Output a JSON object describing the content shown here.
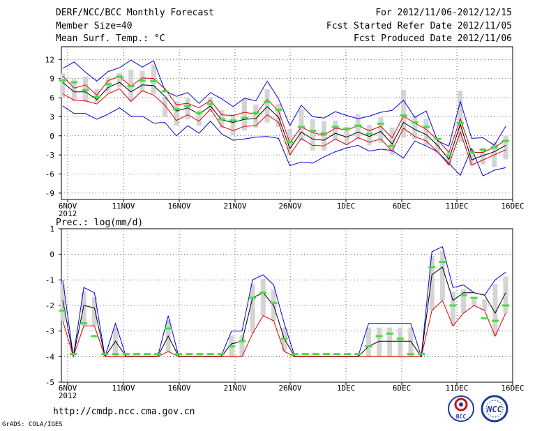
{
  "header": {
    "title": "DERF/NCC/BCC Monthly Forecast",
    "member_size": "Member Size=40",
    "variable": "Mean Surf. Temp.: °C",
    "period": "For 2012/11/06-2012/12/15",
    "start_date": "Fcst Started Refer Date 2012/11/05",
    "produced_date": "Fcst Produced Date 2012/11/06"
  },
  "footer": {
    "url": "http://cmdp.ncc.cma.gov.cn",
    "grads_credit": "GrADS: COLA/IGES",
    "logo_bcc_text": "BCC",
    "logo_ncc_text": "NCC"
  },
  "chart_data": [
    {
      "type": "line",
      "title": "Mean Surf. Temp.: °C",
      "x_tick_labels": [
        "6NOV",
        "11NOV",
        "16NOV",
        "21NOV",
        "26NOV",
        "1DEC",
        "6DEC",
        "11DEC",
        "16DEC"
      ],
      "x_year_label": "2012",
      "ylim": [
        -10,
        14
      ],
      "y_ticks": [
        -9,
        -6,
        -3,
        0,
        3,
        6,
        9,
        12
      ],
      "y_tick_labels": [
        "-9",
        "-6",
        "-3",
        "0",
        "3",
        "6",
        "9",
        "12"
      ],
      "grid": true,
      "series": [
        {
          "name": "max",
          "color": "#0000e0",
          "values": [
            4.7,
            3.5,
            3.5,
            2.6,
            3.4,
            4.4,
            3.1,
            3.1,
            2.0,
            2.1,
            0.0,
            1.6,
            0.4,
            2.3,
            0.3,
            -0.7,
            -0.5,
            -0.2,
            -0.1,
            -0.4,
            -4.7,
            -4.1,
            -4.3,
            -3.3,
            -2.5,
            -1.9,
            -1.5,
            -2.4,
            -2.1,
            -2.3,
            -3.5,
            -0.8,
            -1.6,
            -2.5,
            -4.3,
            -6.2,
            -2.0,
            -6.3,
            -5.4,
            -5.0
          ]
        },
        {
          "name": "mean",
          "color": "#000000",
          "values": [
            8.4,
            6.9,
            6.9,
            5.7,
            7.6,
            8.4,
            6.9,
            8.0,
            7.9,
            6.2,
            3.9,
            4.4,
            3.4,
            4.7,
            2.5,
            2.1,
            2.6,
            2.7,
            4.6,
            2.9,
            -2.0,
            0.6,
            -0.5,
            -0.7,
            0.4,
            -0.2,
            0.6,
            -0.1,
            0.7,
            -1.3,
            2.1,
            1.0,
            0.2,
            -1.5,
            -3.7,
            1.8,
            -3.8,
            -3.1,
            -2.5,
            -1.5
          ]
        },
        {
          "name": "min",
          "color": "#0000e0",
          "values": [
            10.6,
            11.6,
            10.0,
            8.6,
            10.1,
            10.7,
            11.9,
            10.8,
            11.8,
            7.1,
            6.2,
            6.8,
            5.1,
            6.8,
            5.8,
            4.6,
            5.9,
            5.5,
            8.6,
            5.8,
            1.6,
            4.8,
            3.0,
            2.8,
            3.8,
            3.2,
            2.7,
            3.1,
            3.7,
            4.0,
            5.6,
            2.9,
            3.9,
            -0.8,
            -1.6,
            5.4,
            -0.4,
            -0.3,
            -1.5,
            1.5
          ]
        },
        {
          "name": "lower_pct",
          "color": "#dd0000",
          "values": [
            6.6,
            5.6,
            5.5,
            5.0,
            6.6,
            7.4,
            5.4,
            7.1,
            6.4,
            4.8,
            2.4,
            3.3,
            2.3,
            4.2,
            1.5,
            0.8,
            1.5,
            1.6,
            3.3,
            2.1,
            -3.0,
            -0.4,
            -1.5,
            -1.6,
            -0.5,
            -1.4,
            -0.3,
            -1.0,
            -0.5,
            -2.4,
            1.2,
            -0.1,
            -0.8,
            -2.5,
            -4.6,
            0.6,
            -4.6,
            -3.8,
            -3.0,
            -2.2
          ]
        },
        {
          "name": "upper_pct",
          "color": "#dd0000",
          "values": [
            9.4,
            7.5,
            8.0,
            6.4,
            8.7,
            9.3,
            7.8,
            9.1,
            9.0,
            7.4,
            4.9,
            5.1,
            4.4,
            5.6,
            3.3,
            3.2,
            3.7,
            3.4,
            5.7,
            3.9,
            -1.1,
            1.4,
            0.5,
            0.1,
            1.2,
            0.9,
            1.6,
            0.8,
            1.5,
            -0.3,
            3.1,
            2.0,
            1.0,
            -0.6,
            -2.6,
            2.7,
            -2.6,
            -2.6,
            -1.8,
            -0.7
          ]
        },
        {
          "name": "observed",
          "color": "#44dd44",
          "values": [
            8.7,
            8.4,
            7.2,
            6.1,
            8.1,
            9.3,
            7.8,
            8.7,
            8.6,
            7.0,
            4.2,
            4.7,
            3.6,
            5.0,
            2.6,
            2.4,
            2.8,
            3.6,
            5.3,
            4.1,
            -1.0,
            1.4,
            0.8,
            0.4,
            1.4,
            1.1,
            1.6,
            0.3,
            1.9,
            -1.6,
            3.2,
            2.1,
            1.4,
            -0.5,
            -3.1,
            2.0,
            -2.6,
            -2.2,
            -1.8,
            -0.8
          ]
        },
        {
          "name": "ensemble_spread_bar",
          "color": "#d4d4d4",
          "values_low": [
            6.0,
            5.5,
            5.3,
            5.3,
            6.8,
            7.6,
            5.5,
            6.9,
            6.6,
            3.0,
            1.6,
            2.6,
            1.6,
            3.7,
            1.2,
            0.1,
            0.8,
            1.3,
            2.1,
            1.4,
            -2.9,
            -0.8,
            -2.3,
            -2.3,
            -0.7,
            -1.4,
            -0.5,
            -1.5,
            -1.1,
            -3.0,
            -0.3,
            -0.6,
            -1.5,
            -2.8,
            -4.6,
            -1.0,
            -4.7,
            -4.5,
            -4.9,
            -3.7
          ]
        },
        {
          "name": "ensemble_spread_bar_top",
          "color": "#d4d4d4",
          "values_high": [
            9.8,
            8.9,
            9.3,
            7.4,
            9.2,
            9.9,
            10.4,
            10.2,
            11.2,
            6.1,
            5.4,
            5.9,
            4.0,
            6.0,
            4.0,
            3.4,
            5.8,
            4.9,
            7.3,
            5.0,
            1.1,
            4.2,
            2.6,
            2.3,
            2.4,
            1.4,
            3.4,
            1.7,
            2.9,
            1.3,
            7.2,
            3.2,
            2.7,
            -0.9,
            -2.5,
            7.1,
            -2.1,
            -1.9,
            -1.0,
            0.0
          ]
        }
      ]
    },
    {
      "type": "line",
      "title": "Prec.: log(mm/d)",
      "x_tick_labels": [
        "6NOV",
        "11NOV",
        "16NOV",
        "21NOV",
        "26NOV",
        "1DEC",
        "6DEC",
        "11DEC",
        "16DEC"
      ],
      "x_year_label": "2012",
      "ylim": [
        -5,
        1
      ],
      "y_ticks": [
        -5,
        -4,
        -3,
        -2,
        -1,
        0,
        1
      ],
      "y_tick_labels": [
        "-5",
        "-4",
        "-3",
        "-2",
        "-1",
        "0",
        "1"
      ],
      "grid": true,
      "series": [
        {
          "name": "max",
          "color": "#0000e0",
          "values": [
            -1.0,
            -4.0,
            -1.3,
            -1.5,
            -4.0,
            -2.7,
            -4.0,
            -4.0,
            -4.0,
            -4.0,
            -2.4,
            -4.0,
            -4.0,
            -4.0,
            -4.0,
            -4.0,
            -3.0,
            -3.0,
            -1.0,
            -0.8,
            -1.2,
            -2.7,
            -4.0,
            -4.0,
            -4.0,
            -4.0,
            -4.0,
            -4.0,
            -4.0,
            -2.7,
            -2.7,
            -2.7,
            -2.7,
            -2.7,
            -4.0,
            0.1,
            0.3,
            -1.3,
            -1.2,
            -1.5,
            -1.6,
            -1.0,
            -0.7
          ]
        },
        {
          "name": "mean",
          "color": "#000000",
          "values": [
            -1.8,
            -4.0,
            -2.0,
            -2.1,
            -4.0,
            -3.4,
            -4.0,
            -4.0,
            -4.0,
            -4.0,
            -3.2,
            -4.0,
            -4.0,
            -4.0,
            -4.0,
            -4.0,
            -3.5,
            -3.4,
            -1.7,
            -1.5,
            -2.0,
            -3.3,
            -4.0,
            -4.0,
            -4.0,
            -4.0,
            -4.0,
            -4.0,
            -4.0,
            -3.6,
            -3.4,
            -3.4,
            -3.4,
            -3.4,
            -4.0,
            -0.8,
            -0.5,
            -1.8,
            -1.5,
            -1.5,
            -1.6,
            -2.3,
            -1.5
          ]
        },
        {
          "name": "lower_pct",
          "color": "#dd0000",
          "values": [
            -2.6,
            -4.0,
            -2.8,
            -2.8,
            -4.0,
            -4.0,
            -4.0,
            -4.0,
            -4.0,
            -4.0,
            -3.8,
            -4.0,
            -4.0,
            -4.0,
            -4.0,
            -4.0,
            -4.0,
            -4.0,
            -3.1,
            -2.4,
            -2.6,
            -3.8,
            -4.0,
            -4.0,
            -4.0,
            -4.0,
            -4.0,
            -4.0,
            -4.0,
            -4.0,
            -4.0,
            -4.0,
            -4.0,
            -4.0,
            -4.0,
            -2.2,
            -1.8,
            -2.8,
            -2.3,
            -2.0,
            -2.2,
            -3.2,
            -2.3
          ]
        },
        {
          "name": "observed",
          "color": "#44dd44",
          "values": [
            -2.2,
            -3.9,
            -2.7,
            -3.2,
            -3.9,
            -3.9,
            -3.9,
            -3.9,
            -3.9,
            -3.9,
            -2.9,
            -3.9,
            -3.9,
            -3.9,
            -3.9,
            -3.9,
            -3.6,
            -3.4,
            -1.7,
            -1.5,
            -1.9,
            -3.3,
            -3.9,
            -3.9,
            -3.9,
            -3.9,
            -3.9,
            -3.9,
            -3.9,
            -3.6,
            -3.2,
            -3.1,
            -3.3,
            -3.9,
            -3.9,
            -0.5,
            -0.3,
            -2.0,
            -1.6,
            -1.7,
            -2.5,
            -2.6,
            -2.0
          ]
        }
      ]
    }
  ]
}
